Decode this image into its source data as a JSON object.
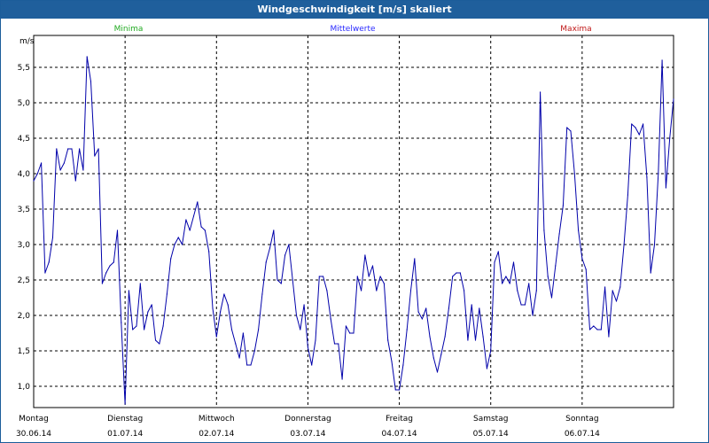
{
  "window": {
    "title": "Windgeschwindigkeit [m/s] skaliert"
  },
  "legend": [
    {
      "label": "Minima",
      "color": "#22aa22"
    },
    {
      "label": "Mittelwerte",
      "color": "#2a2aff"
    },
    {
      "label": "Maxima",
      "color": "#c01818"
    }
  ],
  "colors": {
    "line": "#0000aa",
    "grid": "#000000",
    "frame": "#000000",
    "titlebar": "#1f5f9c"
  },
  "chart_data": {
    "type": "line",
    "title": "Windgeschwindigkeit [m/s] skaliert",
    "ylabel": "m/s",
    "xlabel": "",
    "ylim": [
      0.7,
      5.95
    ],
    "xlim": [
      0,
      168
    ],
    "y_ticks": [
      "5,5",
      "5,0",
      "4,5",
      "4,0",
      "3,5",
      "3,0",
      "2,5",
      "2,0",
      "1,5",
      "1,0"
    ],
    "y_tick_values": [
      5.5,
      5.0,
      4.5,
      4.0,
      3.5,
      3.0,
      2.5,
      2.0,
      1.5,
      1.0
    ],
    "grid": true,
    "day_ticks": [
      {
        "day": "Montag",
        "date": "30.06.14"
      },
      {
        "day": "Dienstag",
        "date": "01.07.14"
      },
      {
        "day": "Mittwoch",
        "date": "02.07.14"
      },
      {
        "day": "Donnerstag",
        "date": "03.07.14"
      },
      {
        "day": "Freitag",
        "date": "04.07.14"
      },
      {
        "day": "Samstag",
        "date": "05.07.14"
      },
      {
        "day": "Sonntag",
        "date": "06.07.14"
      }
    ],
    "series": [
      {
        "name": "Mittelwerte",
        "x_unit": "hours since 30.06.14 00:00",
        "points": [
          [
            0,
            3.9
          ],
          [
            1,
            4.0
          ],
          [
            2,
            4.15
          ],
          [
            3,
            2.6
          ],
          [
            4,
            2.75
          ],
          [
            5,
            3.1
          ],
          [
            6,
            4.35
          ],
          [
            7,
            4.05
          ],
          [
            8,
            4.15
          ],
          [
            9,
            4.35
          ],
          [
            10,
            4.35
          ],
          [
            11,
            3.9
          ],
          [
            12,
            4.35
          ],
          [
            13,
            4.05
          ],
          [
            14,
            5.65
          ],
          [
            15,
            5.3
          ],
          [
            16,
            4.25
          ],
          [
            17,
            4.35
          ],
          [
            18,
            2.45
          ],
          [
            19,
            2.6
          ],
          [
            20,
            2.7
          ],
          [
            21,
            2.75
          ],
          [
            22,
            3.2
          ],
          [
            23,
            1.9
          ],
          [
            24,
            0.75
          ],
          [
            25,
            2.35
          ],
          [
            26,
            1.8
          ],
          [
            27,
            1.85
          ],
          [
            28,
            2.45
          ],
          [
            29,
            1.8
          ],
          [
            30,
            2.05
          ],
          [
            31,
            2.15
          ],
          [
            32,
            1.65
          ],
          [
            33,
            1.6
          ],
          [
            34,
            1.85
          ],
          [
            35,
            2.3
          ],
          [
            36,
            2.8
          ],
          [
            37,
            3.0
          ],
          [
            38,
            3.1
          ],
          [
            39,
            3.0
          ],
          [
            40,
            3.35
          ],
          [
            41,
            3.2
          ],
          [
            42,
            3.4
          ],
          [
            43,
            3.6
          ],
          [
            44,
            3.25
          ],
          [
            45,
            3.2
          ],
          [
            46,
            2.9
          ],
          [
            47,
            2.1
          ],
          [
            48,
            1.7
          ],
          [
            49,
            2.05
          ],
          [
            50,
            2.3
          ],
          [
            51,
            2.15
          ],
          [
            52,
            1.8
          ],
          [
            53,
            1.6
          ],
          [
            54,
            1.4
          ],
          [
            55,
            1.75
          ],
          [
            56,
            1.3
          ],
          [
            57,
            1.3
          ],
          [
            58,
            1.5
          ],
          [
            59,
            1.8
          ],
          [
            60,
            2.3
          ],
          [
            61,
            2.75
          ],
          [
            62,
            2.95
          ],
          [
            63,
            3.2
          ],
          [
            64,
            2.5
          ],
          [
            65,
            2.45
          ],
          [
            66,
            2.85
          ],
          [
            67,
            3.0
          ],
          [
            68,
            2.5
          ],
          [
            69,
            2.0
          ],
          [
            70,
            1.8
          ],
          [
            71,
            2.15
          ],
          [
            72,
            1.55
          ],
          [
            73,
            1.3
          ],
          [
            74,
            1.65
          ],
          [
            75,
            2.55
          ],
          [
            76,
            2.55
          ],
          [
            77,
            2.35
          ],
          [
            78,
            1.95
          ],
          [
            79,
            1.6
          ],
          [
            80,
            1.6
          ],
          [
            81,
            1.1
          ],
          [
            82,
            1.85
          ],
          [
            83,
            1.75
          ],
          [
            84,
            1.75
          ],
          [
            85,
            2.55
          ],
          [
            86,
            2.35
          ],
          [
            87,
            2.85
          ],
          [
            88,
            2.55
          ],
          [
            89,
            2.7
          ],
          [
            90,
            2.35
          ],
          [
            91,
            2.55
          ],
          [
            92,
            2.45
          ],
          [
            93,
            1.65
          ],
          [
            94,
            1.35
          ],
          [
            95,
            0.95
          ],
          [
            96,
            0.95
          ],
          [
            97,
            1.3
          ],
          [
            98,
            1.8
          ],
          [
            99,
            2.35
          ],
          [
            100,
            2.8
          ],
          [
            101,
            2.05
          ],
          [
            102,
            1.95
          ],
          [
            103,
            2.1
          ],
          [
            104,
            1.7
          ],
          [
            105,
            1.4
          ],
          [
            106,
            1.2
          ],
          [
            107,
            1.45
          ],
          [
            108,
            1.7
          ],
          [
            109,
            2.1
          ],
          [
            110,
            2.55
          ],
          [
            111,
            2.6
          ],
          [
            112,
            2.6
          ],
          [
            113,
            2.35
          ],
          [
            114,
            1.65
          ],
          [
            115,
            2.15
          ],
          [
            116,
            1.65
          ],
          [
            117,
            2.1
          ],
          [
            118,
            1.7
          ],
          [
            119,
            1.25
          ],
          [
            120,
            1.5
          ],
          [
            121,
            2.75
          ],
          [
            122,
            2.9
          ],
          [
            123,
            2.45
          ],
          [
            124,
            2.55
          ],
          [
            125,
            2.45
          ],
          [
            126,
            2.75
          ],
          [
            127,
            2.35
          ],
          [
            128,
            2.15
          ],
          [
            129,
            2.15
          ],
          [
            130,
            2.45
          ],
          [
            131,
            2.0
          ],
          [
            132,
            2.35
          ],
          [
            133,
            5.15
          ],
          [
            134,
            3.2
          ],
          [
            135,
            2.55
          ],
          [
            136,
            2.25
          ],
          [
            137,
            2.7
          ],
          [
            138,
            3.15
          ],
          [
            139,
            3.55
          ],
          [
            140,
            4.65
          ],
          [
            141,
            4.6
          ],
          [
            142,
            4.0
          ],
          [
            143,
            3.2
          ],
          [
            144,
            2.8
          ],
          [
            145,
            2.65
          ],
          [
            146,
            1.8
          ],
          [
            147,
            1.85
          ],
          [
            148,
            1.8
          ],
          [
            149,
            1.8
          ],
          [
            150,
            2.4
          ],
          [
            151,
            1.7
          ],
          [
            152,
            2.35
          ],
          [
            153,
            2.2
          ],
          [
            154,
            2.4
          ],
          [
            155,
            3.0
          ],
          [
            156,
            3.7
          ],
          [
            157,
            4.7
          ],
          [
            158,
            4.65
          ],
          [
            159,
            4.55
          ],
          [
            160,
            4.7
          ],
          [
            161,
            3.95
          ],
          [
            162,
            2.6
          ],
          [
            163,
            3.0
          ],
          [
            164,
            4.0
          ],
          [
            165,
            5.6
          ],
          [
            166,
            3.8
          ],
          [
            167,
            4.5
          ],
          [
            168,
            5.05
          ]
        ]
      }
    ]
  }
}
